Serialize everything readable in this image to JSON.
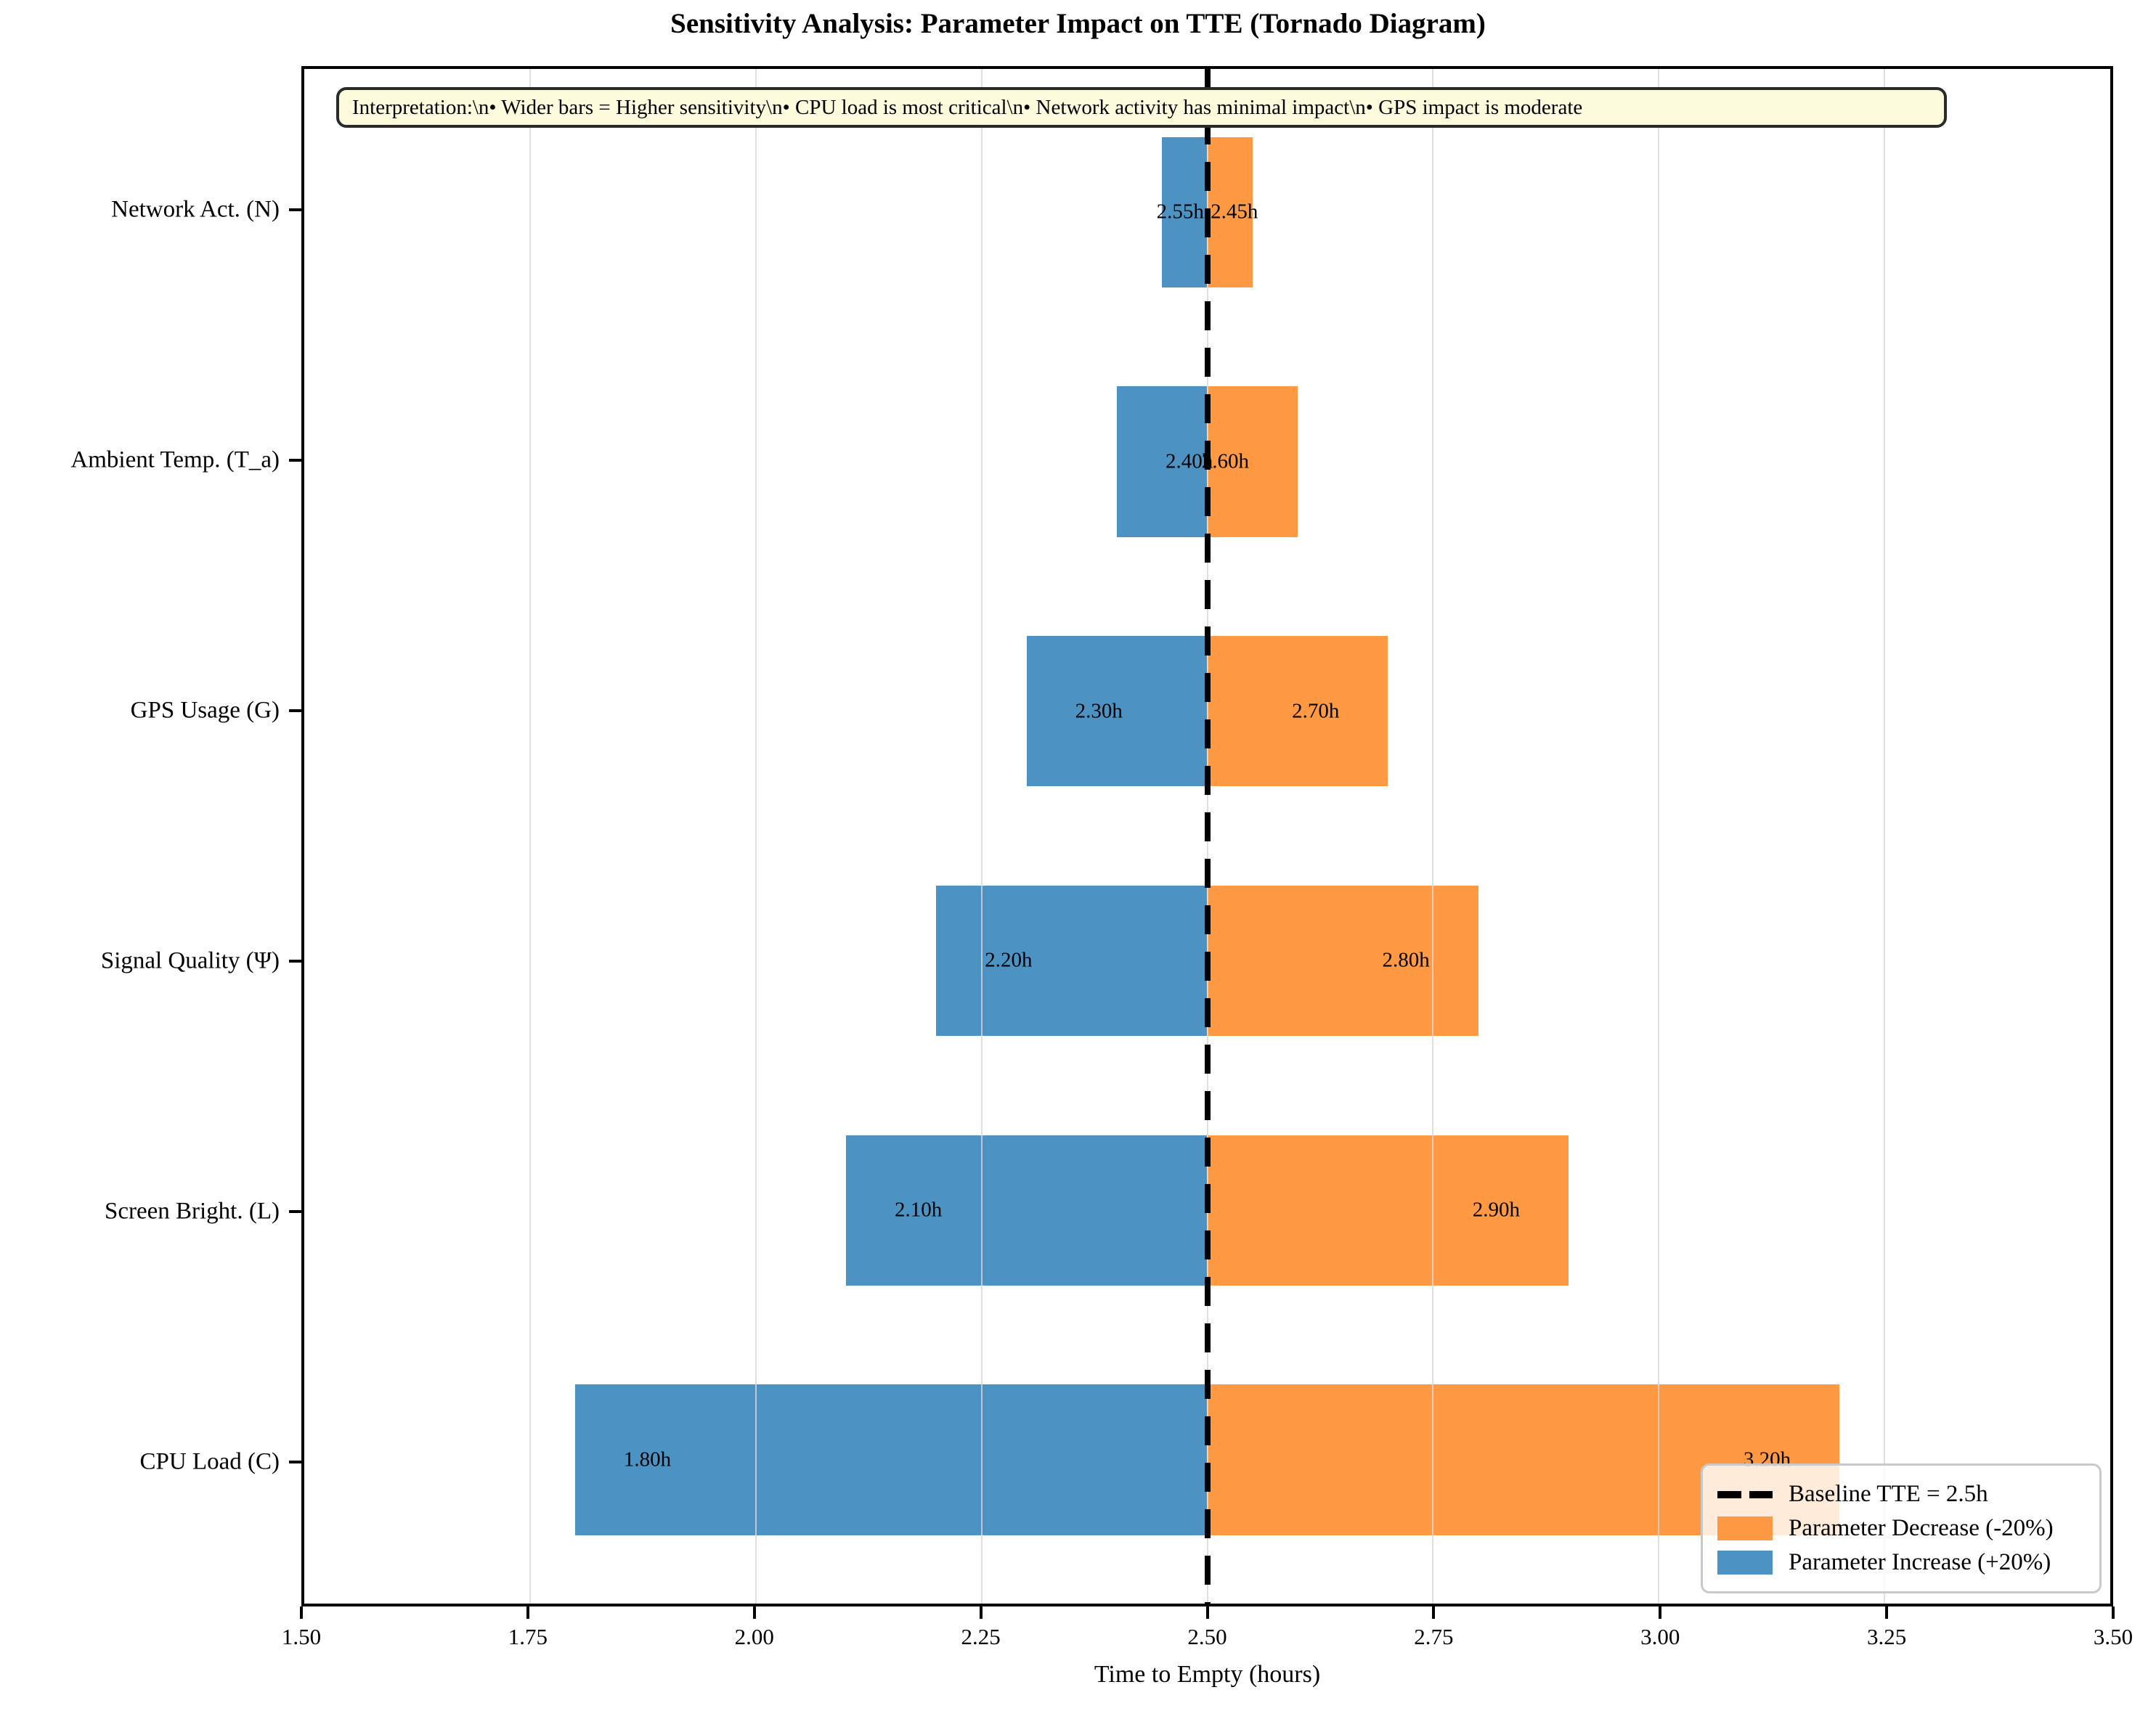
{
  "title": "Sensitivity Analysis: Parameter Impact on TTE (Tornado Diagram)",
  "annotation": "Interpretation:\\n• Wider bars = Higher sensitivity\\n• CPU load is most critical\\n• Network activity has minimal impact\\n• GPS impact is moderate",
  "xlabel": "Time to Empty (hours)",
  "legend": {
    "items": [
      {
        "type": "dash",
        "label": "Baseline TTE = 2.5h",
        "color": "#000000"
      },
      {
        "type": "swatch",
        "label": "Parameter Decrease (-20%)",
        "color": "#FF9943"
      },
      {
        "type": "swatch",
        "label": "Parameter Increase (+20%)",
        "color": "#4C92C3"
      }
    ]
  },
  "chart_data": {
    "type": "bar",
    "subtype": "tornado",
    "orientation": "horizontal",
    "title": "Sensitivity Analysis: Parameter Impact on TTE (Tornado Diagram)",
    "xlabel": "Time to Empty (hours)",
    "xlim": [
      1.5,
      3.5
    ],
    "xticks": [
      {
        "value": 1.5,
        "label": "1.50"
      },
      {
        "value": 1.75,
        "label": "1.75"
      },
      {
        "value": 2.0,
        "label": "2.00"
      },
      {
        "value": 2.25,
        "label": "2.25"
      },
      {
        "value": 2.5,
        "label": "2.50"
      },
      {
        "value": 2.75,
        "label": "2.75"
      },
      {
        "value": 3.0,
        "label": "3.00"
      },
      {
        "value": 3.25,
        "label": "3.25"
      },
      {
        "value": 3.5,
        "label": "3.50"
      }
    ],
    "grid": true,
    "baseline_tte": 2.5,
    "baseline_color": "#000000",
    "colors": {
      "increase": "#4C92C3",
      "decrease": "#FF9943"
    },
    "categories": [
      "Network Act. (N)",
      "Ambient Temp. (T_a)",
      "GPS Usage (G)",
      "Signal Quality (Ψ)",
      "Screen Bright. (L)",
      "CPU Load (C)"
    ],
    "series": [
      {
        "name": "Parameter Increase (+20%)",
        "values": [
          2.45,
          2.4,
          2.3,
          2.2,
          2.1,
          1.8
        ]
      },
      {
        "name": "Parameter Decrease (-20%)",
        "values": [
          2.55,
          2.6,
          2.7,
          2.8,
          2.9,
          3.2
        ]
      }
    ],
    "rows": [
      {
        "category": "Network Act. (N)",
        "increase": {
          "value": 2.45,
          "label": "2.45h",
          "label_x": 2.53
        },
        "decrease": {
          "value": 2.55,
          "label": "2.55h",
          "label_x": 2.47
        }
      },
      {
        "category": "Ambient Temp. (T_a)",
        "increase": {
          "value": 2.4,
          "label": "2.40h",
          "label_x": 2.48
        },
        "decrease": {
          "value": 2.6,
          "label": "2.60h",
          "label_x": 2.52
        }
      },
      {
        "category": "GPS Usage (G)",
        "increase": {
          "value": 2.3,
          "label": "2.30h",
          "label_x": 2.38
        },
        "decrease": {
          "value": 2.7,
          "label": "2.70h",
          "label_x": 2.62
        }
      },
      {
        "category": "Signal Quality (Ψ)",
        "increase": {
          "value": 2.2,
          "label": "2.20h",
          "label_x": 2.28
        },
        "decrease": {
          "value": 2.8,
          "label": "2.80h",
          "label_x": 2.72
        }
      },
      {
        "category": "Screen Bright. (L)",
        "increase": {
          "value": 2.1,
          "label": "2.10h",
          "label_x": 2.18
        },
        "decrease": {
          "value": 2.9,
          "label": "2.90h",
          "label_x": 2.82
        }
      },
      {
        "category": "CPU Load (C)",
        "increase": {
          "value": 1.8,
          "label": "1.80h",
          "label_x": 1.88
        },
        "decrease": {
          "value": 3.2,
          "label": "3.20h",
          "label_x": 3.12
        }
      }
    ],
    "legend_position": "lower right"
  }
}
